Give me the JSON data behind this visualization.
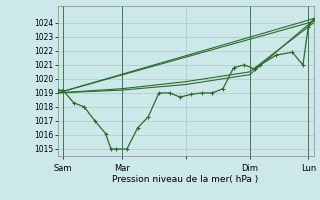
{
  "background_color": "#cce8e8",
  "grid_color": "#aacccc",
  "line_color": "#2d6b2d",
  "xlabel": "Pression niveau de la mer( hPa )",
  "ylim": [
    1014.5,
    1025.2
  ],
  "yticks": [
    1015,
    1016,
    1017,
    1018,
    1019,
    1020,
    1021,
    1022,
    1023,
    1024
  ],
  "xlim": [
    0,
    24
  ],
  "xtick_pos": [
    0.5,
    6,
    12,
    18,
    23.5
  ],
  "xtick_labels": [
    "Sam",
    "Mar",
    "",
    "Dim",
    "Lun"
  ],
  "vline_x": [
    0.5,
    6,
    18,
    23.5
  ],
  "line1_x": [
    0,
    0.5,
    1.5,
    2.5,
    3.5,
    4.5,
    5,
    5.5,
    6.5,
    7.5,
    8.5,
    9.5,
    10.5,
    11.5,
    12.5,
    13.5,
    14.5,
    15.5,
    16.5,
    17.5,
    18.5,
    19,
    20.5,
    22,
    23,
    23.5,
    24
  ],
  "line1_y": [
    1019.2,
    1019.2,
    1018.3,
    1018.0,
    1017.0,
    1016.1,
    1015.0,
    1015.0,
    1015.0,
    1016.5,
    1017.3,
    1019.0,
    1019.0,
    1018.7,
    1018.9,
    1019.0,
    1019.0,
    1019.3,
    1020.8,
    1021.0,
    1020.7,
    1021.0,
    1021.7,
    1021.9,
    1021.0,
    1023.7,
    1024.3
  ],
  "trend1_x": [
    0,
    24
  ],
  "trend1_y": [
    1019.0,
    1024.3
  ],
  "trend2_x": [
    0,
    24
  ],
  "trend2_y": [
    1019.0,
    1024.1
  ],
  "trend3_x": [
    0,
    6,
    12,
    18,
    24
  ],
  "trend3_y": [
    1019.0,
    1019.3,
    1019.8,
    1020.5,
    1024.0
  ],
  "trend4_x": [
    0,
    6,
    12,
    18,
    24
  ],
  "trend4_y": [
    1019.0,
    1019.2,
    1019.6,
    1020.3,
    1024.2
  ]
}
